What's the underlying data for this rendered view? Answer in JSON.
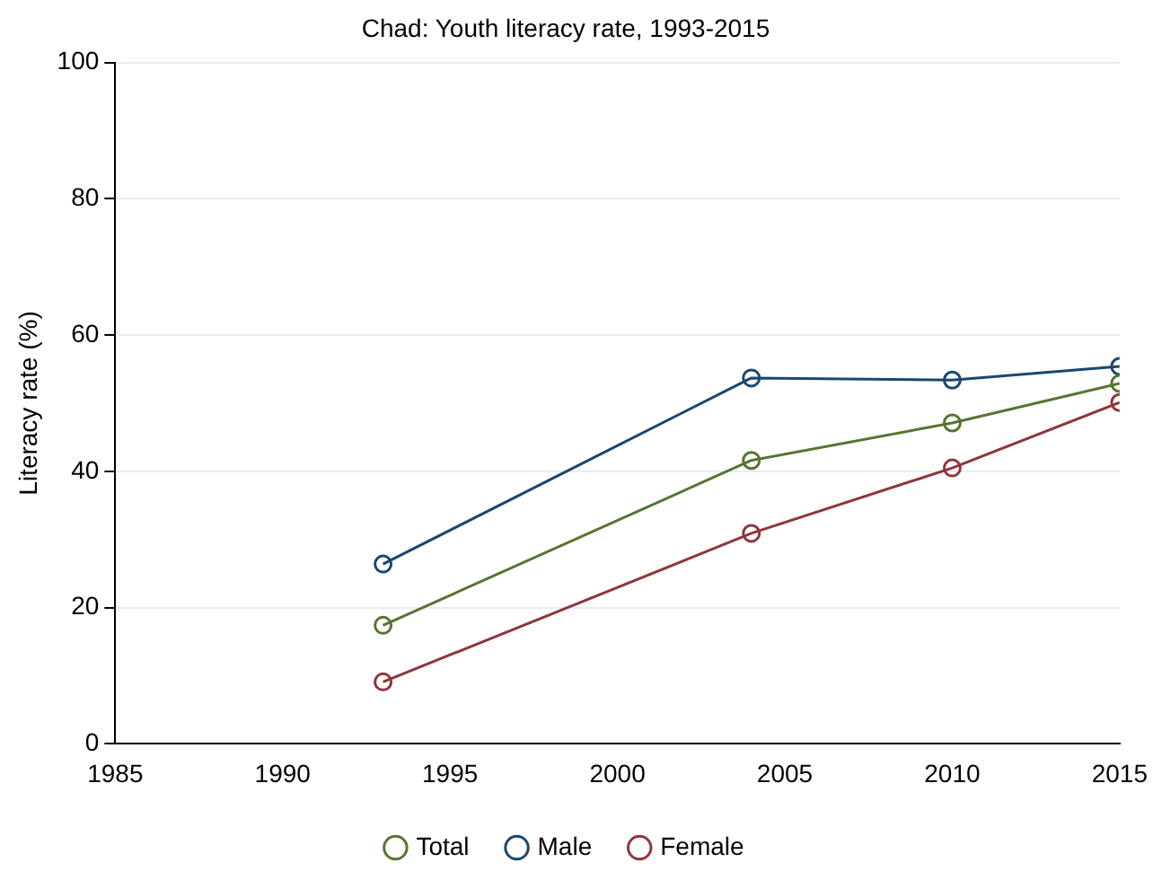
{
  "chart_data": {
    "type": "line",
    "title": "Chad: Youth literacy rate, 1993-2015",
    "ylabel": "Literacy rate (%)",
    "x": [
      1993,
      2004,
      2010,
      2015
    ],
    "series": [
      {
        "name": "Total",
        "color": "#55752f",
        "values": [
          17.4,
          41.6,
          47.1,
          52.9
        ]
      },
      {
        "name": "Male",
        "color": "#1a476f",
        "values": [
          26.4,
          53.7,
          53.4,
          55.4
        ]
      },
      {
        "name": "Female",
        "color": "#90353b",
        "values": [
          9.1,
          30.9,
          40.5,
          50.1
        ]
      }
    ],
    "xlim": [
      1985,
      2015
    ],
    "xticks": [
      1985,
      1990,
      1995,
      2000,
      2005,
      2010,
      2015
    ],
    "ylim": [
      0,
      100
    ],
    "yticks": [
      0,
      20,
      40,
      60,
      80,
      100
    ],
    "grid": "y",
    "legend": "bottom",
    "marker": "circle",
    "line_style": "solid"
  }
}
